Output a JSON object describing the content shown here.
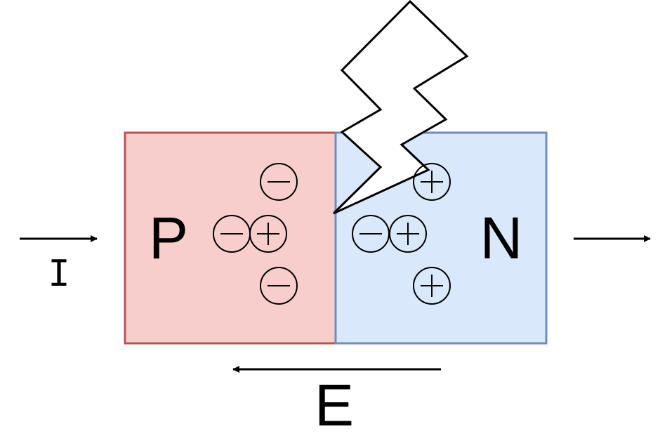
{
  "diagram": {
    "p_label": "P",
    "n_label": "N",
    "current_label": "I",
    "field_label": "E",
    "colors": {
      "p_fill": "#f8cecc",
      "p_stroke": "#b85450",
      "n_fill": "#dae8fc",
      "n_stroke": "#6c8ebf",
      "ink": "#000000"
    },
    "icons": {
      "minus": "minus-in-circle",
      "plus": "plus-in-circle",
      "light": "lightning-bolt"
    }
  }
}
